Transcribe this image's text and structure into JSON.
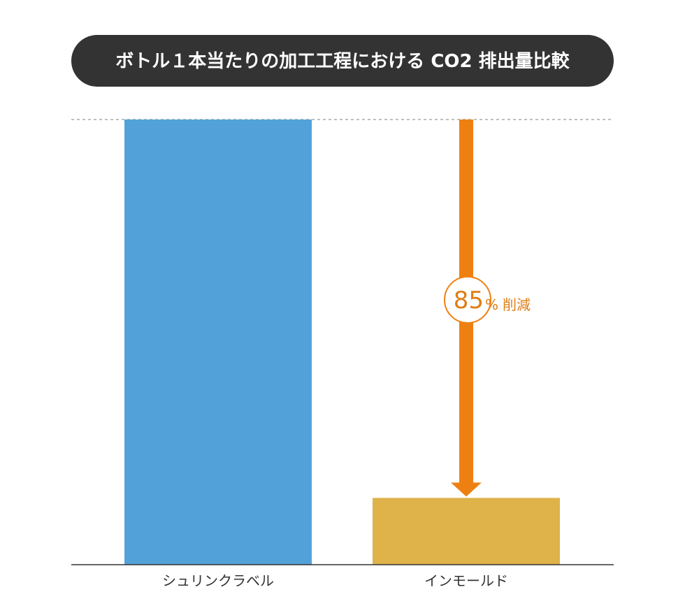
{
  "chart_data": {
    "type": "bar",
    "title": "ボトル１本当たりの加工工程における CO2 排出量比較",
    "categories": [
      "シュリンクラベル",
      "インモールド"
    ],
    "values": [
      100,
      15
    ],
    "ylim": [
      0,
      100
    ],
    "grid": false,
    "reference_line": 100,
    "annotation": {
      "from_category": "インモールド",
      "from_value": 100,
      "to_value": 15,
      "percent": "85",
      "percent_sign": "%",
      "text": "削減"
    }
  },
  "colors": {
    "title_background": "#333333",
    "title_text": "#ffffff",
    "bars": [
      "#52a2d9",
      "#dfb24a"
    ],
    "arrow": "#ee8011",
    "annotation_text": "#e07d14",
    "axis": "#333333",
    "reference_line": "#999999",
    "category_label": "#333333"
  }
}
